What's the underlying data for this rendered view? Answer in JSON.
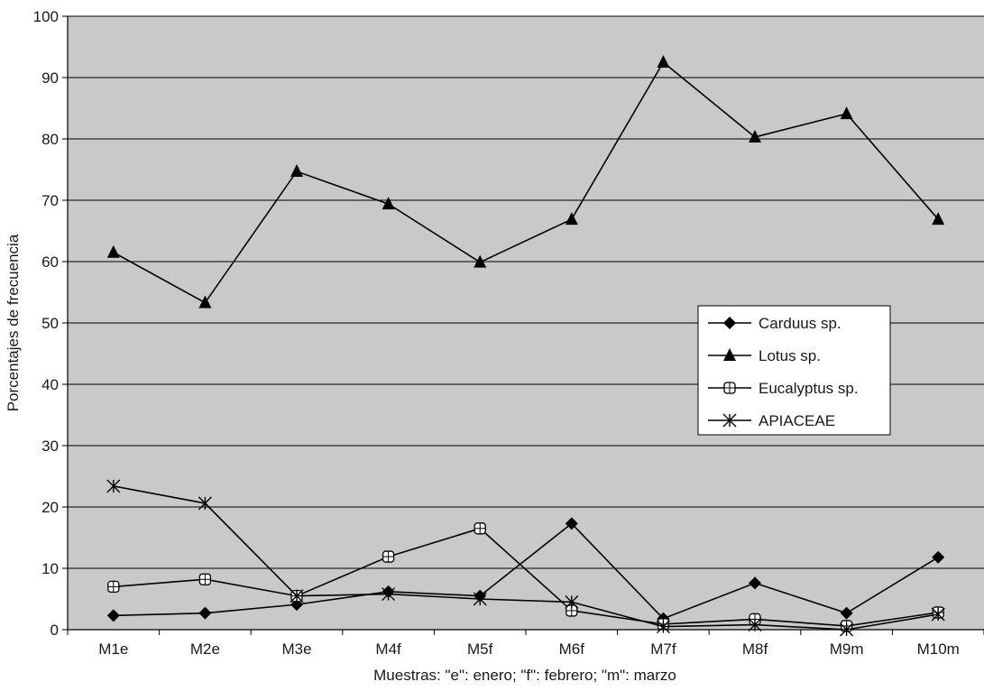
{
  "chart_data": {
    "type": "line",
    "title": "",
    "xlabel": "Muestras: \"e\": enero; \"f\": febrero; \"m\": marzo",
    "ylabel": "Porcentajes de frecuencia",
    "ylim": [
      0,
      100
    ],
    "yticks": [
      "0",
      "10",
      "20",
      "30",
      "40",
      "50",
      "60",
      "70",
      "80",
      "90",
      "100"
    ],
    "categories": [
      "M1e",
      "M2e",
      "M3e",
      "M4f",
      "M5f",
      "M6f",
      "M7f",
      "M8f",
      "M9m",
      "M10m"
    ],
    "grid": "horizontal",
    "legend_position": "right",
    "series": [
      {
        "name": "Carduus sp.",
        "marker": "diamond",
        "color": "#000000",
        "values": [
          2.3,
          2.7,
          4.1,
          6.2,
          5.5,
          17.3,
          1.8,
          7.6,
          2.7,
          11.8
        ]
      },
      {
        "name": "Lotus sp.",
        "marker": "triangle",
        "color": "#000000",
        "values": [
          61.5,
          53.3,
          74.7,
          69.4,
          59.9,
          66.9,
          92.5,
          80.3,
          84.1,
          66.9
        ]
      },
      {
        "name": "Eucalyptus sp.",
        "marker": "open-square-cross",
        "color": "#000000",
        "values": [
          7.0,
          8.2,
          5.5,
          11.9,
          16.5,
          3.1,
          0.9,
          1.7,
          0.6,
          2.8
        ]
      },
      {
        "name": "APIACEAE",
        "marker": "asterisk",
        "color": "#000000",
        "values": [
          23.4,
          20.6,
          5.5,
          5.8,
          5.0,
          4.5,
          0.5,
          0.8,
          0.0,
          2.5
        ]
      }
    ]
  }
}
